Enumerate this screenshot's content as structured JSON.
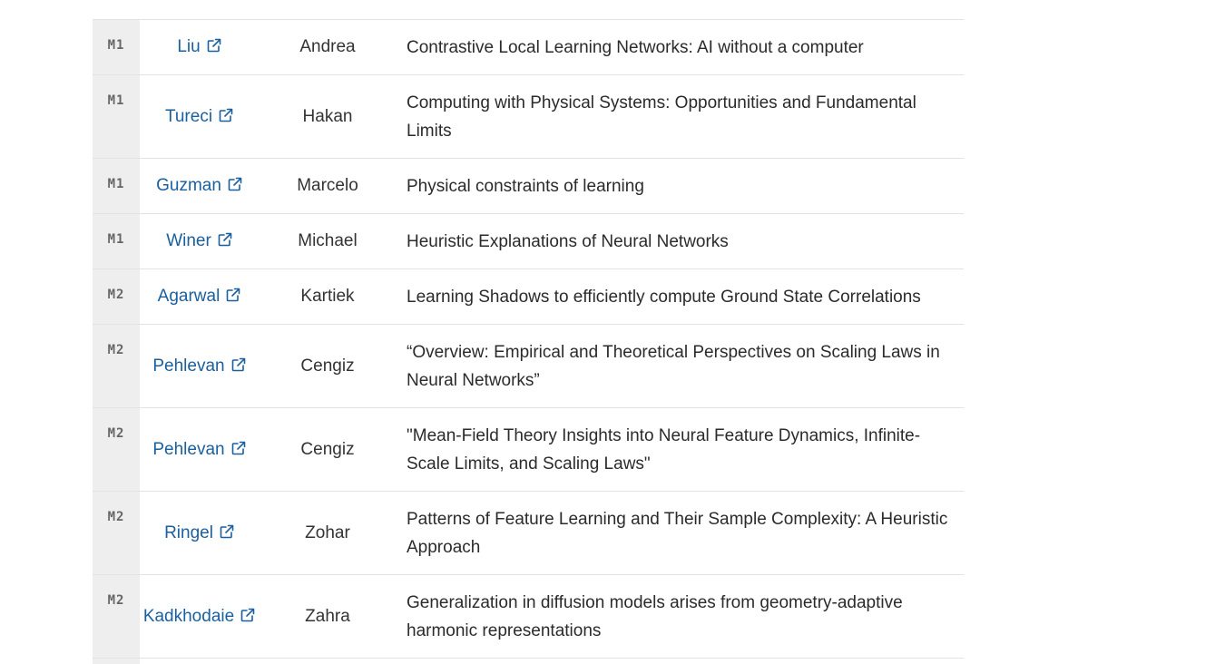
{
  "rows": [
    {
      "session": "M1",
      "last": "Liu",
      "first": "Andrea",
      "title": "Contrastive Local Learning Networks: AI without a computer"
    },
    {
      "session": "M1",
      "last": "Tureci",
      "first": "Hakan",
      "title": "Computing with Physical Systems: Opportunities and Fundamental Limits"
    },
    {
      "session": "M1",
      "last": "Guzman",
      "first": "Marcelo",
      "title": "Physical constraints of learning"
    },
    {
      "session": "M1",
      "last": "Winer",
      "first": "Michael",
      "title": "Heuristic Explanations of Neural Networks"
    },
    {
      "session": "M2",
      "last": "Agarwal",
      "first": "Kartiek",
      "title": "Learning Shadows to efficiently compute Ground State Correlations"
    },
    {
      "session": "M2",
      "last": "Pehlevan",
      "first": "Cengiz",
      "title": "“Overview: Empirical and Theoretical Perspectives on Scaling Laws in Neural Networks”"
    },
    {
      "session": "M2",
      "last": "Pehlevan",
      "first": "Cengiz",
      "title": "\"Mean-Field Theory Insights into Neural Feature Dynamics, Infinite-Scale Limits, and Scaling Laws\""
    },
    {
      "session": "M2",
      "last": "Ringel",
      "first": "Zohar",
      "title": "Patterns of Feature Learning and Their Sample Complexity: A Heuristic Approach"
    },
    {
      "session": "M2",
      "last": "Kadkhodaie",
      "first": "Zahra",
      "title": "Generalization in diffusion models arises from geometry-adaptive harmonic representations"
    }
  ],
  "icons": {
    "external_link": "external-link-icon"
  },
  "colors": {
    "link": "#1a5f9e",
    "session_bg": "#eeeeee",
    "border": "#e3e3e3"
  }
}
